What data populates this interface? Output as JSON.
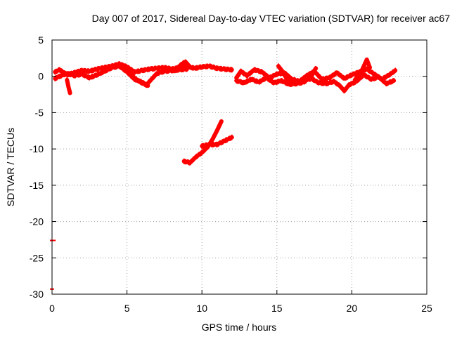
{
  "chart_data": {
    "type": "scatter",
    "title": "Day 007 of 2017, Sidereal Day-to-day VTEC variation (SDTVAR) for receiver ac67",
    "xlabel": "GPS time / hours",
    "ylabel": "SDTVAR / TECUs",
    "xlim": [
      0,
      25
    ],
    "ylim": [
      -30,
      5
    ],
    "x_ticks": [
      "0",
      "5",
      "10",
      "15",
      "20",
      "25"
    ],
    "y_ticks": [
      "5",
      "0",
      "-5",
      "-10",
      "-15",
      "-20",
      "-25",
      "-30"
    ],
    "grid": true,
    "legend": "none",
    "color": "#ff0000",
    "series": [
      {
        "segments": [
          [
            [
              0.2,
              0.6
            ],
            [
              0.5,
              0.9
            ],
            [
              1.0,
              0.2
            ],
            [
              1.5,
              0.5
            ],
            [
              2.0,
              0.8
            ],
            [
              2.5,
              0.7
            ],
            [
              3.0,
              1.0
            ],
            [
              3.5,
              1.2
            ],
            [
              4.0,
              1.4
            ],
            [
              4.5,
              1.7
            ],
            [
              5.0,
              1.3
            ],
            [
              5.5,
              0.6
            ],
            [
              6.0,
              0.8
            ],
            [
              6.5,
              1.0
            ],
            [
              7.0,
              1.1
            ],
            [
              7.5,
              1.2
            ],
            [
              8.0,
              1.0
            ],
            [
              8.5,
              1.2
            ],
            [
              9.0,
              1.4
            ],
            [
              9.5,
              1.1
            ],
            [
              10.0,
              1.3
            ],
            [
              10.5,
              1.4
            ],
            [
              11.0,
              1.1
            ],
            [
              11.5,
              1.0
            ],
            [
              12.0,
              0.9
            ]
          ],
          [
            [
              0.2,
              -0.3
            ],
            [
              0.5,
              0.0
            ],
            [
              1.0,
              0.4
            ],
            [
              1.5,
              0.1
            ],
            [
              2.0,
              0.3
            ],
            [
              2.5,
              -0.2
            ],
            [
              3.0,
              0.2
            ],
            [
              3.5,
              0.7
            ],
            [
              4.0,
              1.2
            ],
            [
              4.5,
              1.4
            ],
            [
              5.0,
              0.6
            ],
            [
              5.5,
              -0.4
            ],
            [
              6.0,
              -0.8
            ],
            [
              6.3,
              -1.2
            ],
            [
              6.5,
              -0.7
            ],
            [
              7.0,
              0.4
            ],
            [
              7.5,
              0.7
            ],
            [
              8.0,
              0.8
            ],
            [
              8.5,
              0.9
            ],
            [
              9.0,
              1.0
            ]
          ],
          [
            [
              1.0,
              -0.5
            ],
            [
              1.1,
              -1.5
            ],
            [
              1.2,
              -2.3
            ]
          ],
          [
            [
              4.9,
              1.0
            ],
            [
              5.3,
              0.2
            ],
            [
              5.6,
              -0.4
            ],
            [
              6.0,
              -0.9
            ],
            [
              6.4,
              -1.3
            ]
          ],
          [
            [
              8.2,
              0.8
            ],
            [
              8.6,
              1.6
            ],
            [
              8.9,
              2.0
            ],
            [
              9.2,
              1.3
            ]
          ],
          [
            [
              12.3,
              -0.2
            ],
            [
              12.6,
              0.7
            ],
            [
              13.0,
              0.1
            ],
            [
              13.5,
              0.9
            ],
            [
              14.0,
              0.6
            ],
            [
              14.5,
              -0.2
            ],
            [
              15.0,
              0.3
            ],
            [
              15.5,
              0.5
            ],
            [
              16.0,
              -0.4
            ],
            [
              16.5,
              -0.7
            ],
            [
              17.0,
              0.1
            ],
            [
              17.5,
              0.7
            ],
            [
              18.0,
              -0.4
            ],
            [
              18.5,
              -0.2
            ],
            [
              19.0,
              0.5
            ],
            [
              19.5,
              -0.3
            ],
            [
              20.0,
              0.2
            ],
            [
              20.5,
              0.6
            ],
            [
              21.0,
              1.0
            ],
            [
              21.5,
              0.3
            ],
            [
              22.0,
              -0.4
            ],
            [
              22.5,
              0.2
            ],
            [
              22.9,
              0.8
            ]
          ],
          [
            [
              12.3,
              -0.6
            ],
            [
              12.8,
              -0.9
            ],
            [
              13.3,
              -0.4
            ],
            [
              13.8,
              -0.8
            ],
            [
              14.3,
              -0.2
            ],
            [
              14.8,
              -0.9
            ],
            [
              15.3,
              -0.6
            ],
            [
              15.8,
              -1.1
            ],
            [
              16.3,
              -1.0
            ],
            [
              16.8,
              -0.8
            ],
            [
              17.2,
              -0.2
            ],
            [
              17.8,
              -0.9
            ],
            [
              18.3,
              -1.0
            ],
            [
              18.8,
              -0.7
            ],
            [
              19.2,
              -1.3
            ],
            [
              19.5,
              -2.0
            ],
            [
              19.8,
              -1.2
            ],
            [
              20.3,
              -0.7
            ],
            [
              20.8,
              0.2
            ],
            [
              21.3,
              -0.4
            ],
            [
              21.8,
              -0.1
            ],
            [
              22.3,
              -1.0
            ],
            [
              22.8,
              -0.6
            ]
          ],
          [
            [
              15.1,
              1.4
            ],
            [
              15.4,
              0.6
            ],
            [
              15.7,
              -0.5
            ],
            [
              16.0,
              -1.1
            ]
          ],
          [
            [
              17.2,
              -0.4
            ],
            [
              17.4,
              0.4
            ],
            [
              17.6,
              1.1
            ]
          ],
          [
            [
              20.2,
              -0.5
            ],
            [
              20.6,
              0.5
            ],
            [
              21.0,
              2.3
            ],
            [
              21.2,
              1.2
            ]
          ],
          [
            [
              8.8,
              -11.7
            ],
            [
              9.2,
              -11.9
            ],
            [
              9.6,
              -11.1
            ],
            [
              10.0,
              -10.5
            ],
            [
              10.4,
              -9.7
            ],
            [
              10.7,
              -8.7
            ],
            [
              11.0,
              -7.5
            ],
            [
              11.3,
              -6.2
            ]
          ],
          [
            [
              10.0,
              -9.6
            ],
            [
              10.5,
              -9.4
            ],
            [
              11.0,
              -9.4
            ],
            [
              11.5,
              -8.9
            ],
            [
              12.0,
              -8.4
            ]
          ]
        ]
      }
    ],
    "points": [
      [
        0.0,
        -22.6
      ],
      [
        0.1,
        -22.6
      ],
      [
        0.0,
        -29.3
      ]
    ]
  }
}
